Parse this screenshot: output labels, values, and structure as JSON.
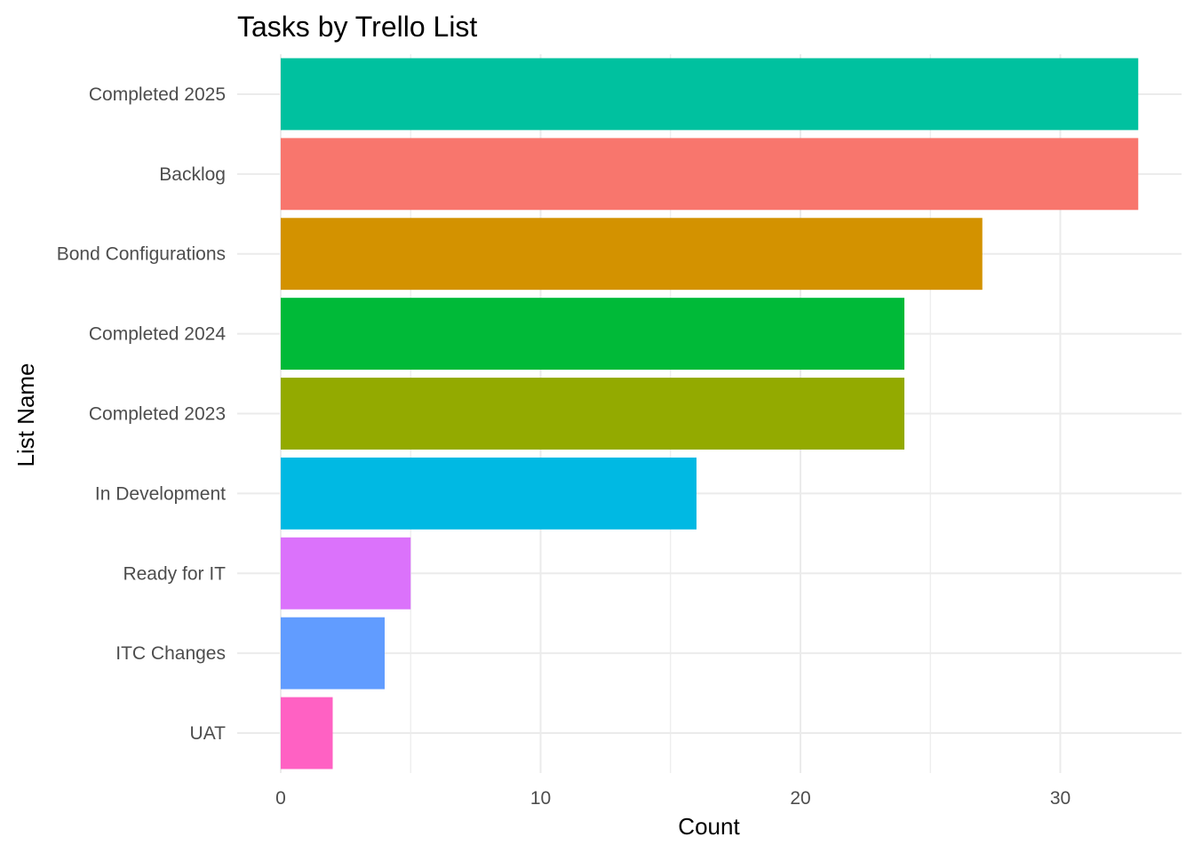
{
  "chart_data": {
    "type": "bar",
    "orientation": "horizontal",
    "title": "Tasks by Trello List",
    "xlabel": "Count",
    "ylabel": "List Name",
    "xlim": [
      0,
      34
    ],
    "x_ticks": [
      0,
      10,
      20,
      30
    ],
    "grid": true,
    "legend": "none",
    "categories": [
      "Completed 2025",
      "Backlog",
      "Bond Configurations",
      "Completed 2024",
      "Completed 2023",
      "In Development",
      "Ready for IT",
      "ITC Changes",
      "UAT"
    ],
    "values": [
      33,
      33,
      27,
      24,
      24,
      16,
      5,
      4,
      2
    ],
    "colors": [
      "#00C19F",
      "#F8766D",
      "#D39200",
      "#00BA38",
      "#93AA00",
      "#00B9E3",
      "#DB72FB",
      "#619CFF",
      "#FF61C3"
    ]
  }
}
